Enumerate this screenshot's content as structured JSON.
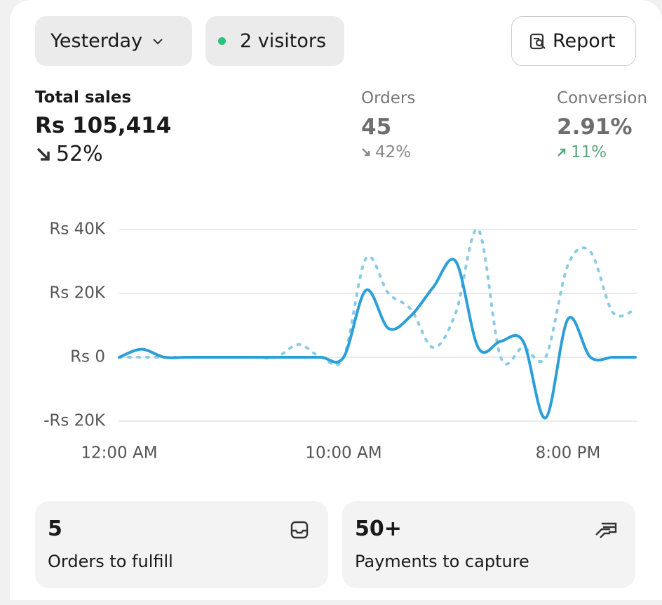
{
  "header": {
    "period": "Yesterday",
    "visitors": "2 visitors",
    "report": "Report"
  },
  "metrics": [
    {
      "label": "Total sales",
      "value": "Rs 105,414",
      "change": "52%"
    },
    {
      "label": "Orders",
      "value": "45",
      "change": "42%"
    },
    {
      "label": "Conversion",
      "value": "2.91%",
      "change": "11%"
    }
  ],
  "chart_data": {
    "type": "line",
    "categories": [
      "12:00 AM",
      null,
      null,
      null,
      null,
      null,
      null,
      null,
      null,
      null,
      "10:00 AM",
      null,
      null,
      null,
      null,
      null,
      null,
      null,
      null,
      null,
      "8:00 PM",
      null,
      null,
      null
    ],
    "series": [
      {
        "color": "#8ccbe6",
        "dashed": true,
        "values": [
          0,
          0,
          0,
          0,
          0,
          0,
          0,
          0,
          4000,
          0,
          0,
          31000,
          20000,
          15000,
          3000,
          14000,
          40000,
          0,
          3000,
          0,
          29000,
          33000,
          14000,
          15000
        ]
      },
      {
        "color": "#2a9fd8",
        "dashed": false,
        "values": [
          0,
          2500,
          0,
          0,
          0,
          0,
          0,
          0,
          0,
          0,
          0,
          21000,
          9000,
          13000,
          22000,
          30000,
          3000,
          5000,
          5000,
          -19000,
          12000,
          0,
          0,
          0
        ]
      }
    ],
    "ylim": [
      -20000,
      40000
    ],
    "yticks": [
      {
        "value": -20000,
        "label": "-Rs 20K"
      },
      {
        "value": 0,
        "label": "Rs 0"
      },
      {
        "value": 20000,
        "label": "Rs 20K"
      },
      {
        "value": 40000,
        "label": "Rs 40K"
      }
    ],
    "grid": true
  },
  "cards": [
    {
      "value": "5",
      "label": "Orders to fulfill"
    },
    {
      "value": "50+",
      "label": "Payments to capture"
    }
  ]
}
